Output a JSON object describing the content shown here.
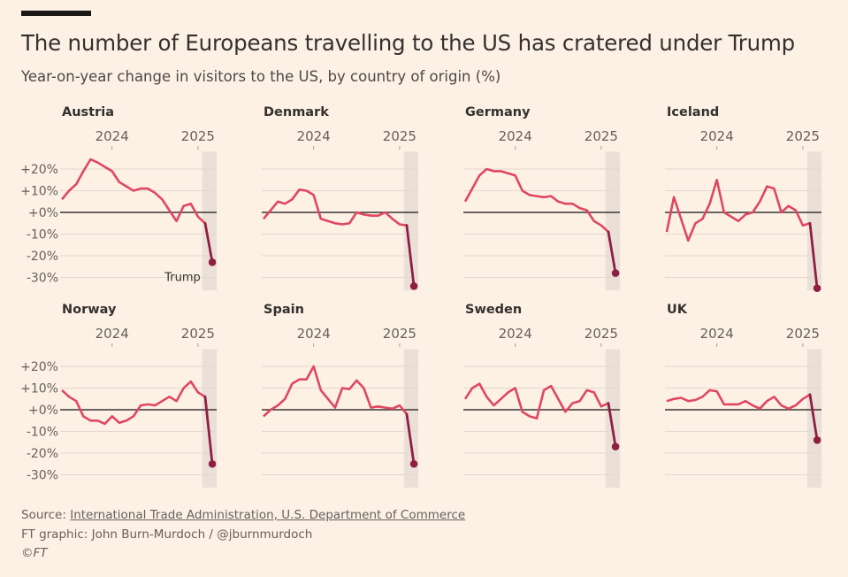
{
  "chart_data": {
    "type": "line",
    "layout": "small-multiples",
    "title": "The number of Europeans travelling to the US has cratered under Trump",
    "subtitle": "Year-on-year change in visitors to the US, by country of origin (%)",
    "x": [
      "2023-06",
      "2023-07",
      "2023-08",
      "2023-09",
      "2023-10",
      "2023-11",
      "2023-12",
      "2024-01",
      "2024-02",
      "2024-03",
      "2024-04",
      "2024-05",
      "2024-06",
      "2024-07",
      "2024-08",
      "2024-09",
      "2024-10",
      "2024-11",
      "2024-12",
      "2025-01",
      "2025-02",
      "2025-03"
    ],
    "xticks": [
      {
        "label": "2024",
        "x": "2024-01"
      },
      {
        "label": "2025",
        "x": "2025-01"
      }
    ],
    "yticks": [
      {
        "label": "+20%",
        "v": 20
      },
      {
        "label": "+10%",
        "v": 10
      },
      {
        "label": "+0%",
        "v": 0
      },
      {
        "label": "-10%",
        "v": -10
      },
      {
        "label": "-20%",
        "v": -20
      },
      {
        "label": "-30%",
        "v": -30
      }
    ],
    "ylim": [
      -35,
      25
    ],
    "grid": true,
    "shaded_period": {
      "label": "Trump",
      "from": "2025-01-20",
      "to": "2025-03"
    },
    "colors": {
      "line": "#e0475f",
      "trump_line": "#8e1f43",
      "zero": "#3a3633",
      "grid": "#e3d8cf",
      "shade": "#ebe0d8",
      "background": "#fdf1e6"
    },
    "series": [
      {
        "name": "Austria",
        "values": [
          6,
          10,
          13,
          19,
          24.5,
          23,
          21,
          19,
          14,
          12,
          10,
          11,
          11,
          9,
          6,
          1,
          -4,
          3,
          4,
          -2,
          -5,
          -23
        ]
      },
      {
        "name": "Denmark",
        "values": [
          -3,
          1,
          5,
          4,
          6,
          10.5,
          10,
          8,
          -3,
          -4,
          -5,
          -5.5,
          -5,
          0,
          -1,
          -1.5,
          -1.5,
          0,
          -3,
          -5.5,
          -6,
          -34
        ]
      },
      {
        "name": "Germany",
        "values": [
          5,
          11,
          17,
          20,
          19,
          19,
          18,
          17,
          10,
          8,
          7.5,
          7,
          7.5,
          5,
          4,
          4,
          2,
          1,
          -4,
          -6,
          -9,
          -28
        ]
      },
      {
        "name": "Iceland",
        "values": [
          -9,
          7,
          -3,
          -13,
          -5,
          -3,
          4,
          15,
          0,
          -2,
          -4,
          -1,
          0,
          5,
          12,
          11,
          0,
          3,
          1,
          -6,
          -5,
          -35
        ]
      },
      {
        "name": "Norway",
        "values": [
          9,
          6,
          4,
          -3,
          -5,
          -5,
          -6.5,
          -3,
          -6,
          -5,
          -3,
          2,
          2.5,
          2,
          4,
          6,
          4,
          10,
          13,
          8,
          6,
          -25
        ]
      },
      {
        "name": "Spain",
        "values": [
          -3,
          0,
          2,
          5,
          12,
          14,
          14,
          20,
          9,
          5,
          1,
          10,
          9.5,
          13.5,
          10,
          1,
          1.5,
          1,
          0.5,
          2,
          -2,
          -25
        ]
      },
      {
        "name": "Sweden",
        "values": [
          5,
          10,
          12,
          6,
          2,
          5,
          8,
          10,
          -1,
          -3,
          -4,
          9,
          11,
          5,
          -1,
          3,
          4,
          9,
          8,
          1.5,
          3,
          -17
        ]
      },
      {
        "name": "UK",
        "values": [
          4,
          5,
          5.5,
          4,
          4.5,
          6,
          9,
          8.5,
          2.5,
          2.5,
          2.5,
          4,
          2,
          0.5,
          4,
          6,
          2,
          0.5,
          2,
          5,
          7,
          -14
        ]
      }
    ]
  },
  "footer": {
    "source_prefix": "Source: ",
    "source_link": "International Trade Administration, U.S. Department of Commerce",
    "credit": "FT graphic: John Burn-Murdoch / @jburnmurdoch",
    "copyright": "©FT"
  }
}
